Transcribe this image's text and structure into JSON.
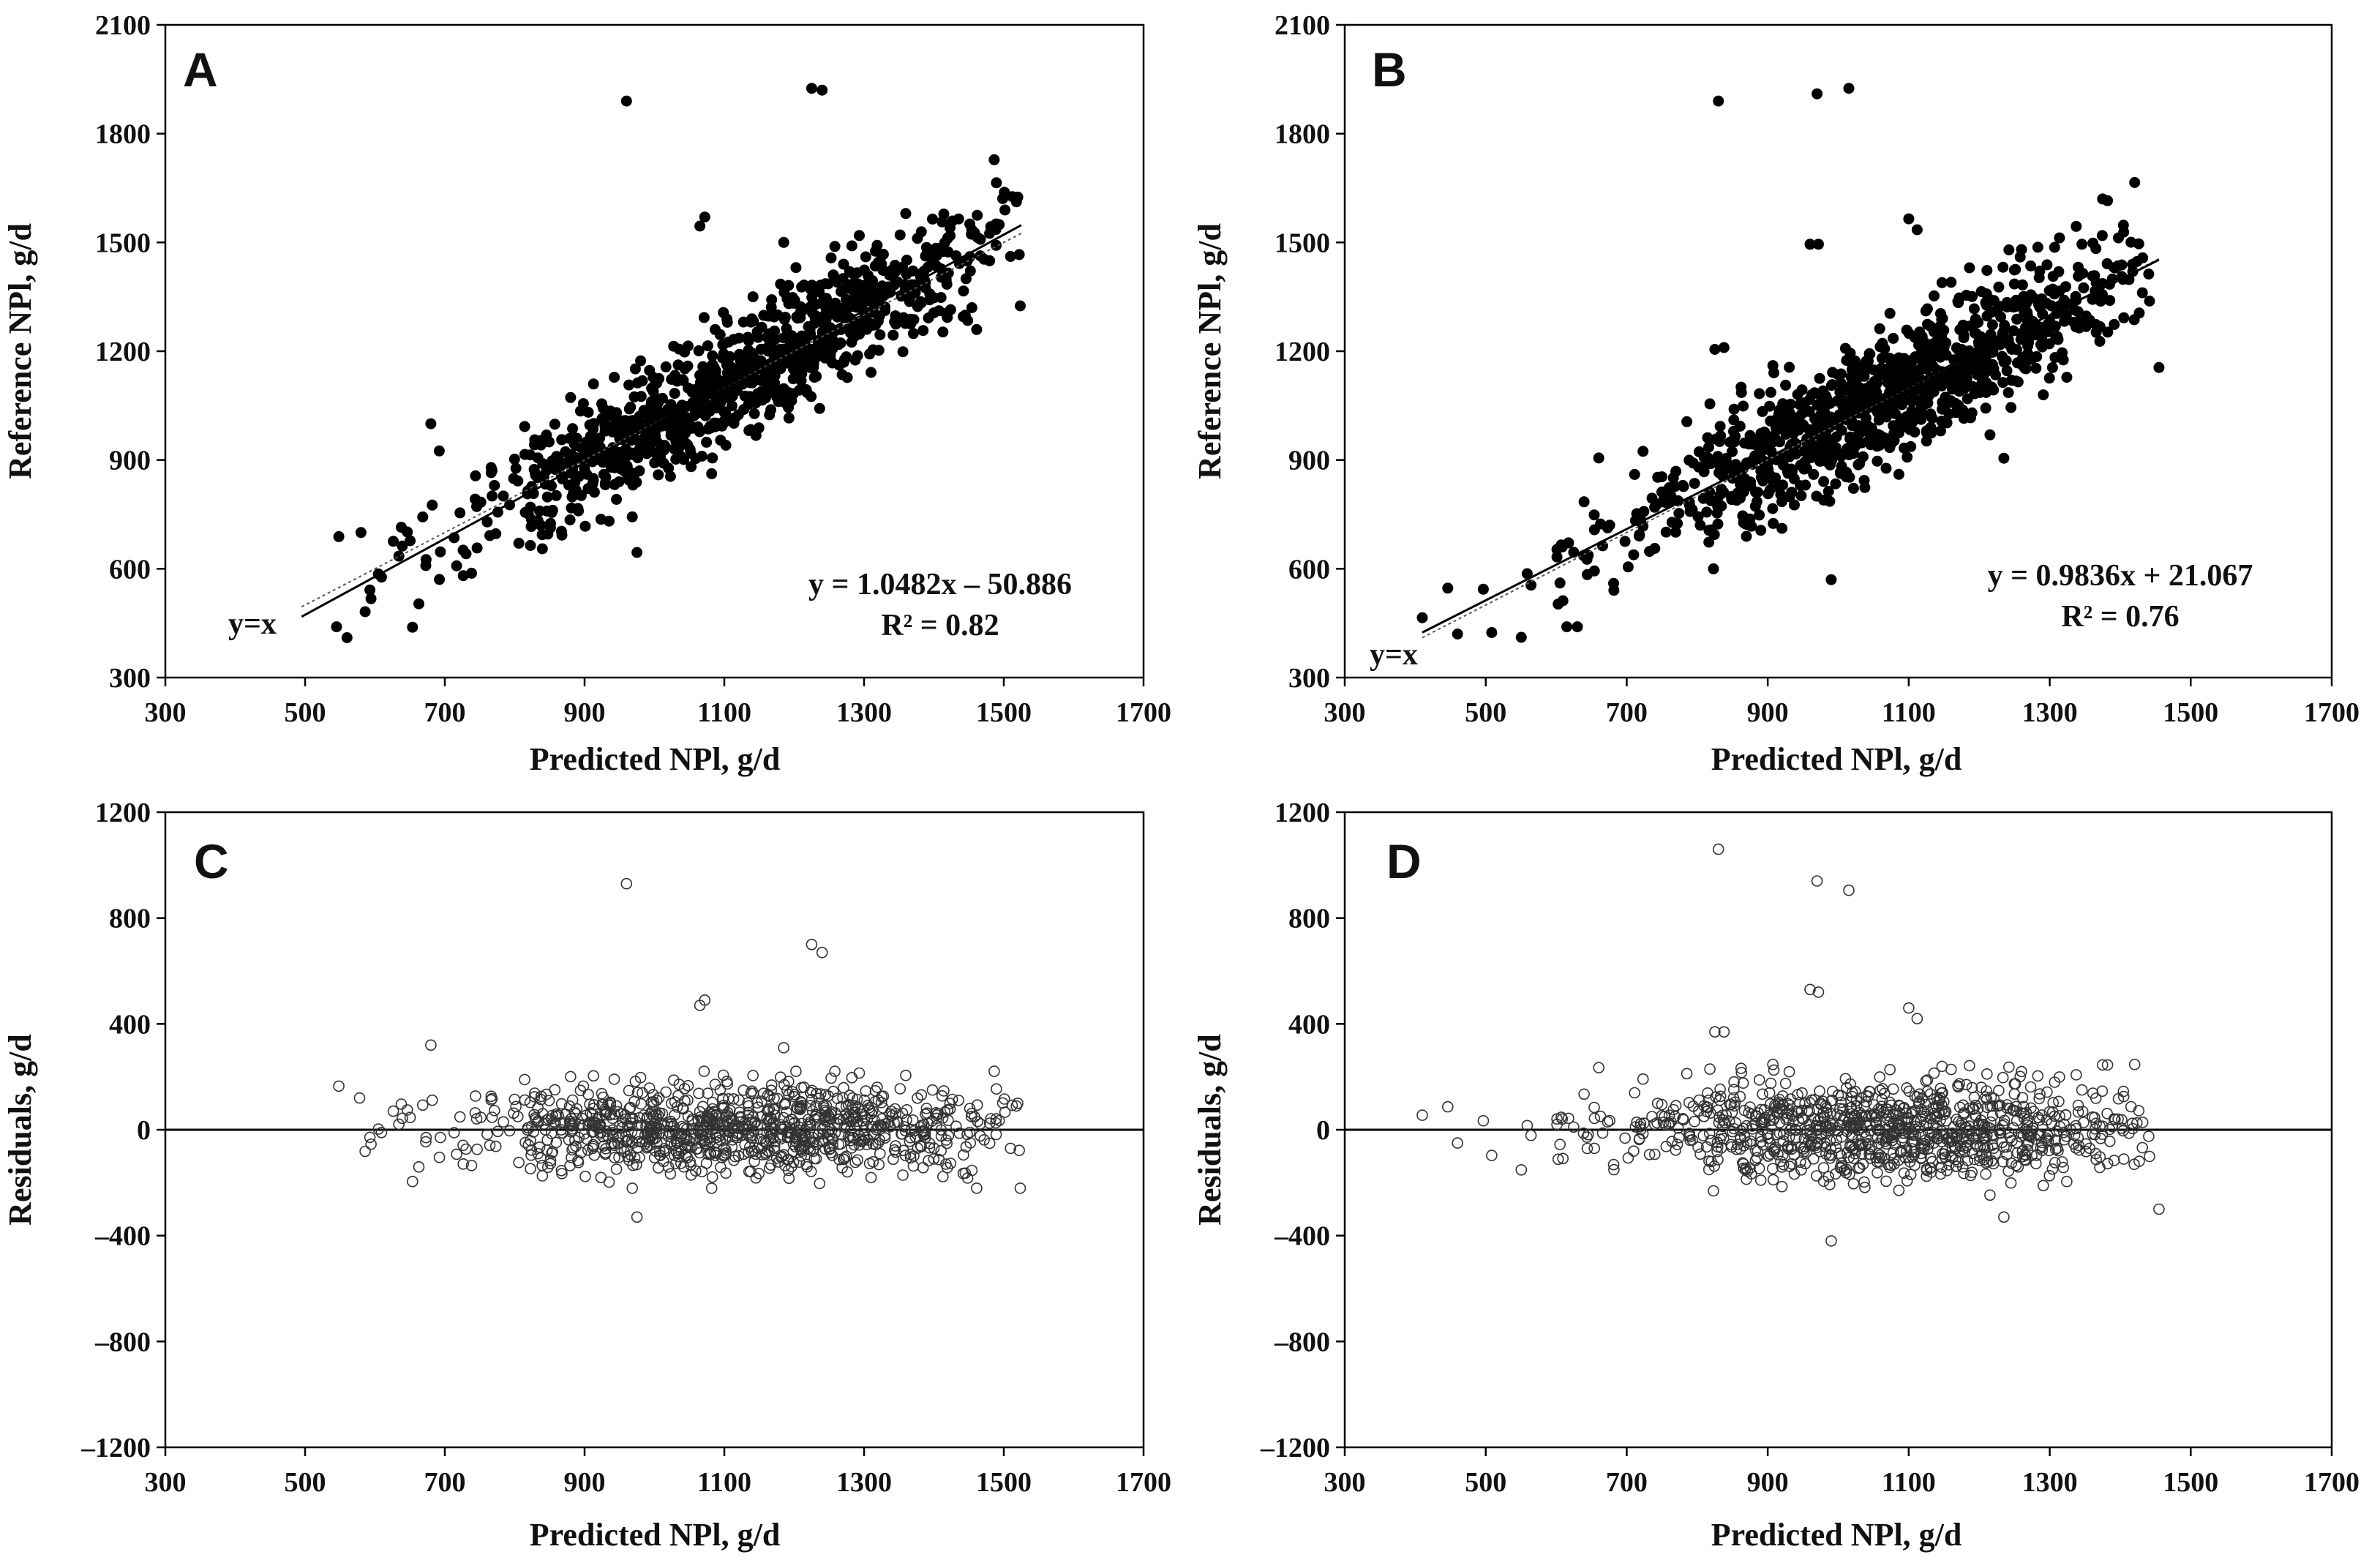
{
  "chart_data": [
    {
      "panel": "A",
      "type": "scatter",
      "marker": "filled",
      "xlabel": "Predicted NPl, g/d",
      "ylabel": "Reference NPl, g/d",
      "xlim": [
        300,
        1700
      ],
      "ylim": [
        300,
        2100
      ],
      "xticks": [
        "300",
        "500",
        "700",
        "900",
        "1100",
        "1300",
        "1500",
        "1700"
      ],
      "yticks": [
        "300",
        "600",
        "900",
        "1200",
        "1500",
        "1800",
        "2100"
      ],
      "equation": "y = 1.0482x – 50.886",
      "r2": "R² = 0.82",
      "identity_label": "y=x",
      "fit": {
        "slope": 1.0482,
        "intercept": -50.886,
        "x_range": [
          495,
          1525
        ]
      },
      "identity_range": [
        495,
        1525
      ],
      "cloud": {
        "n": 1000,
        "x_min": 495,
        "x_max": 1525,
        "center": 1120,
        "spread": 200,
        "slope": 1.0482,
        "intercept": -50.886,
        "noise_sd": 85
      },
      "outliers": [
        {
          "x": 960,
          "y": 1890
        },
        {
          "x": 1225,
          "y": 1925
        },
        {
          "x": 1240,
          "y": 1920
        },
        {
          "x": 1065,
          "y": 1545
        },
        {
          "x": 1072,
          "y": 1570
        },
        {
          "x": 1185,
          "y": 1500
        },
        {
          "x": 680,
          "y": 1000
        },
        {
          "x": 692,
          "y": 925
        },
        {
          "x": 975,
          "y": 645
        },
        {
          "x": 1520,
          "y": 1625
        },
        {
          "x": 1518,
          "y": 1612
        },
        {
          "x": 560,
          "y": 410
        },
        {
          "x": 545,
          "y": 440
        },
        {
          "x": 580,
          "y": 700
        }
      ]
    },
    {
      "panel": "B",
      "type": "scatter",
      "marker": "filled",
      "xlabel": "Predicted NPl, g/d",
      "ylabel": "Reference NPl, g/d",
      "xlim": [
        300,
        1700
      ],
      "ylim": [
        300,
        2100
      ],
      "xticks": [
        "300",
        "500",
        "700",
        "900",
        "1100",
        "1300",
        "1500",
        "1700"
      ],
      "yticks": [
        "300",
        "600",
        "900",
        "1200",
        "1500",
        "1800",
        "2100"
      ],
      "equation": "y = 0.9836x + 21.067",
      "r2": "R² = 0.76",
      "identity_label": "y=x",
      "fit": {
        "slope": 0.9836,
        "intercept": 21.067,
        "x_range": [
          410,
          1455
        ]
      },
      "identity_range": [
        410,
        1455
      ],
      "cloud": {
        "n": 1000,
        "x_min": 410,
        "x_max": 1455,
        "center": 1060,
        "spread": 195,
        "slope": 0.9836,
        "intercept": 21.067,
        "noise_sd": 95
      },
      "outliers": [
        {
          "x": 830,
          "y": 1890
        },
        {
          "x": 970,
          "y": 1910
        },
        {
          "x": 1015,
          "y": 1925
        },
        {
          "x": 960,
          "y": 1495
        },
        {
          "x": 972,
          "y": 1495
        },
        {
          "x": 1100,
          "y": 1565
        },
        {
          "x": 1112,
          "y": 1535
        },
        {
          "x": 825,
          "y": 1205
        },
        {
          "x": 838,
          "y": 1210
        },
        {
          "x": 990,
          "y": 570
        },
        {
          "x": 1235,
          "y": 905
        },
        {
          "x": 1375,
          "y": 1620
        },
        {
          "x": 1382,
          "y": 1615
        },
        {
          "x": 1455,
          "y": 1155
        },
        {
          "x": 410,
          "y": 465
        },
        {
          "x": 460,
          "y": 420
        },
        {
          "x": 615,
          "y": 440
        },
        {
          "x": 630,
          "y": 440
        }
      ]
    },
    {
      "panel": "C",
      "type": "scatter",
      "marker": "open",
      "xlabel": "Predicted NPl, g/d",
      "ylabel": "Residuals, g/d",
      "xlim": [
        300,
        1700
      ],
      "ylim": [
        -1200,
        1200
      ],
      "xticks": [
        "300",
        "500",
        "700",
        "900",
        "1100",
        "1300",
        "1500",
        "1700"
      ],
      "yticks": [
        "–1200",
        "–800",
        "–400",
        "0",
        "400",
        "800",
        "1200"
      ],
      "zero_line": 0,
      "cloud": {
        "n": 1000,
        "x_min": 495,
        "x_max": 1525,
        "center": 1120,
        "spread": 200,
        "noise_sd": 85
      },
      "outliers": [
        {
          "x": 960,
          "y": 930
        },
        {
          "x": 1225,
          "y": 700
        },
        {
          "x": 1240,
          "y": 670
        },
        {
          "x": 1065,
          "y": 470
        },
        {
          "x": 1072,
          "y": 490
        },
        {
          "x": 1185,
          "y": 310
        },
        {
          "x": 680,
          "y": 320
        },
        {
          "x": 975,
          "y": -330
        },
        {
          "x": 1520,
          "y": 100
        },
        {
          "x": 1518,
          "y": 90
        },
        {
          "x": 578,
          "y": 120
        }
      ]
    },
    {
      "panel": "D",
      "type": "scatter",
      "marker": "open",
      "xlabel": "Predicted NPl, g/d",
      "ylabel": "Residuals, g/d",
      "xlim": [
        300,
        1700
      ],
      "ylim": [
        -1200,
        1200
      ],
      "xticks": [
        "300",
        "500",
        "700",
        "900",
        "1100",
        "1300",
        "1500",
        "1700"
      ],
      "yticks": [
        "–1200",
        "–800",
        "–400",
        "0",
        "400",
        "800",
        "1200"
      ],
      "zero_line": 0,
      "cloud": {
        "n": 1000,
        "x_min": 410,
        "x_max": 1455,
        "center": 1060,
        "spread": 195,
        "noise_sd": 95
      },
      "outliers": [
        {
          "x": 830,
          "y": 1060
        },
        {
          "x": 970,
          "y": 940
        },
        {
          "x": 1015,
          "y": 905
        },
        {
          "x": 960,
          "y": 530
        },
        {
          "x": 972,
          "y": 520
        },
        {
          "x": 1100,
          "y": 460
        },
        {
          "x": 1112,
          "y": 420
        },
        {
          "x": 825,
          "y": 370
        },
        {
          "x": 838,
          "y": 370
        },
        {
          "x": 990,
          "y": -420
        },
        {
          "x": 1235,
          "y": -330
        },
        {
          "x": 1455,
          "y": -300
        },
        {
          "x": 1375,
          "y": 245
        },
        {
          "x": 1382,
          "y": 245
        },
        {
          "x": 410,
          "y": 55
        },
        {
          "x": 460,
          "y": -50
        }
      ]
    }
  ]
}
